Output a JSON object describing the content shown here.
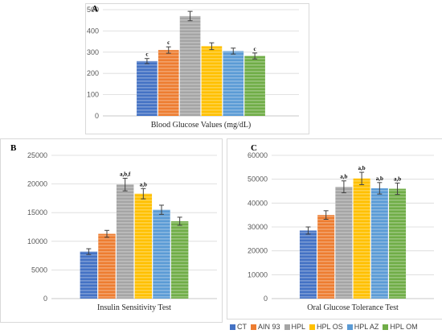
{
  "series_meta": [
    {
      "name": "CT",
      "color": "#4472c4"
    },
    {
      "name": "AIN 93",
      "color": "#ed7d31"
    },
    {
      "name": "HPL",
      "color": "#a5a5a5"
    },
    {
      "name": "HPL OS",
      "color": "#ffc000"
    },
    {
      "name": "HPL AZ",
      "color": "#5b9bd5"
    },
    {
      "name": "HPL OM",
      "color": "#70ad47"
    }
  ],
  "chart_data": [
    {
      "type": "bar",
      "panel_label": "A",
      "xlabel": "Blood Glucose Values  (mg/dL)",
      "ylim": [
        0,
        500
      ],
      "yticks": [
        0,
        100,
        200,
        300,
        400,
        500
      ],
      "grid": true,
      "series": [
        {
          "name": "CT",
          "value": 258,
          "error": 12,
          "label": "c"
        },
        {
          "name": "AIN 93",
          "value": 310,
          "error": 15,
          "label": "c"
        },
        {
          "name": "HPL",
          "value": 470,
          "error": 22,
          "label": ""
        },
        {
          "name": "HPL OS",
          "value": 328,
          "error": 16,
          "label": ""
        },
        {
          "name": "HPL AZ",
          "value": 305,
          "error": 14,
          "label": ""
        },
        {
          "name": "HPL OM",
          "value": 282,
          "error": 14,
          "label": "c"
        }
      ]
    },
    {
      "type": "bar",
      "panel_label": "B",
      "xlabel": "Insulin Sensitivity Test",
      "ylim": [
        0,
        25000
      ],
      "yticks": [
        0,
        5000,
        10000,
        15000,
        20000,
        25000
      ],
      "grid": true,
      "series": [
        {
          "name": "CT",
          "value": 8200,
          "error": 500,
          "label": ""
        },
        {
          "name": "AIN 93",
          "value": 11300,
          "error": 600,
          "label": ""
        },
        {
          "name": "HPL",
          "value": 19900,
          "error": 1100,
          "label": "a,b,f"
        },
        {
          "name": "HPL OS",
          "value": 18300,
          "error": 900,
          "label": "a,b"
        },
        {
          "name": "HPL AZ",
          "value": 15500,
          "error": 800,
          "label": ""
        },
        {
          "name": "HPL OM",
          "value": 13500,
          "error": 700,
          "label": ""
        }
      ]
    },
    {
      "type": "bar",
      "panel_label": "C",
      "xlabel": "Oral Glucose Tolerance Test",
      "ylim": [
        0,
        60000
      ],
      "yticks": [
        0,
        10000,
        20000,
        30000,
        40000,
        50000,
        60000
      ],
      "grid": true,
      "series": [
        {
          "name": "CT",
          "value": 28500,
          "error": 1500,
          "label": ""
        },
        {
          "name": "AIN 93",
          "value": 35000,
          "error": 1800,
          "label": ""
        },
        {
          "name": "HPL",
          "value": 46800,
          "error": 2500,
          "label": "a,b"
        },
        {
          "name": "HPL OS",
          "value": 50300,
          "error": 2600,
          "label": "a,b"
        },
        {
          "name": "HPL AZ",
          "value": 46200,
          "error": 2400,
          "label": "a,b"
        },
        {
          "name": "HPL OM",
          "value": 46000,
          "error": 2400,
          "label": "a,b"
        }
      ]
    }
  ],
  "legend_position": "bottom-right"
}
